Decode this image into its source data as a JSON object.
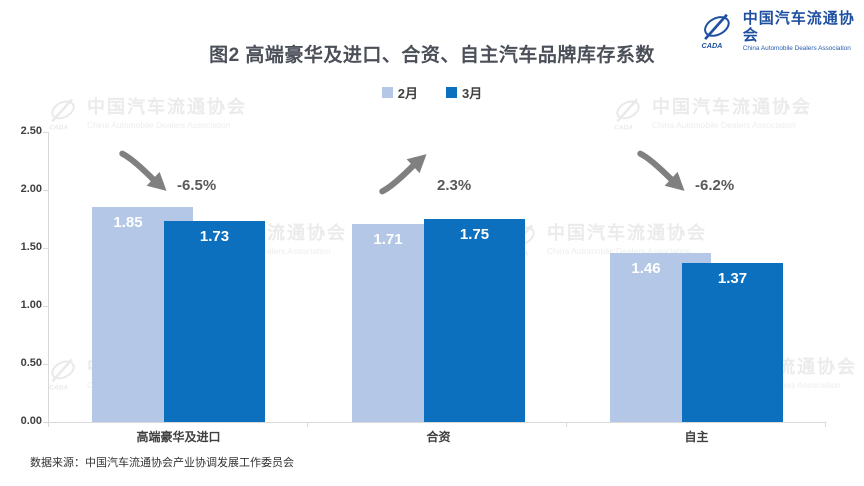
{
  "brand": {
    "logo_cn": "中国汽车流通协会",
    "logo_en": "China Automobile Dealers Association",
    "logo_abbr": "CADA",
    "brand_blue": "#1E4FA0"
  },
  "title": "图2  高端豪华及进口、合资、自主汽车品牌库存系数",
  "legend": [
    {
      "label": "2月",
      "color": "#B4C7E7"
    },
    {
      "label": "3月",
      "color": "#0D70BE"
    }
  ],
  "watermark": {
    "cn": "中国汽车流通协会",
    "en": "China Automobile Dealers Association",
    "abbr": "CADA"
  },
  "source_note": "数据来源：中国汽车流通协会产业协调发展工作委员会",
  "chart_data": {
    "type": "bar",
    "categories": [
      "高端豪华及进口",
      "合资",
      "自主"
    ],
    "series": [
      {
        "name": "2月",
        "color": "#B4C7E7",
        "values": [
          1.85,
          1.71,
          1.46
        ]
      },
      {
        "name": "3月",
        "color": "#0D70BE",
        "values": [
          1.73,
          1.75,
          1.37
        ]
      }
    ],
    "change_labels": [
      "-6.5%",
      "2.3%",
      "-6.2%"
    ],
    "change_directions": [
      "down",
      "up",
      "down"
    ],
    "value_format_decimals": 2,
    "ylim": [
      0,
      2.5
    ],
    "ytick_labels": [
      "0.00",
      "0.50",
      "1.00",
      "1.50",
      "2.00",
      "2.50"
    ],
    "grid": false,
    "legend_position": "top",
    "arrow_color": "#808080",
    "axis_color": "#D9D9D9"
  }
}
